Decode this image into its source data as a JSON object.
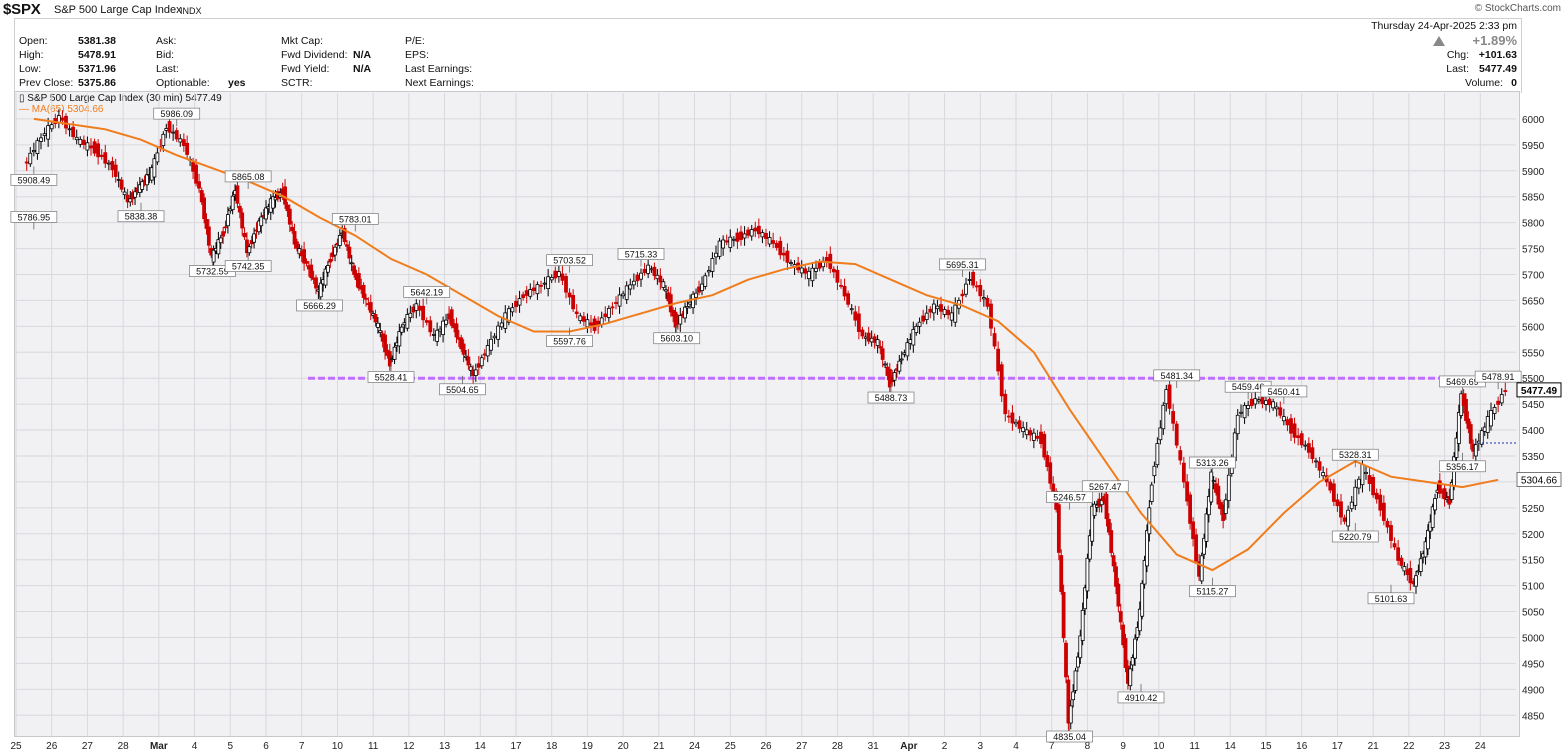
{
  "header": {
    "symbol": "$SPX",
    "name": "S&P 500 Large Cap Index",
    "exchange": "INDX",
    "logo": "© StockCharts.com"
  },
  "quote": {
    "open_label": "Open:",
    "open": "5381.38",
    "high_label": "High:",
    "high": "5478.91",
    "low_label": "Low:",
    "low": "5371.96",
    "prev_close_label": "Prev Close:",
    "prev_close": "5375.86",
    "ask_label": "Ask:",
    "bid_label": "Bid:",
    "last_label2": "Last:",
    "optionable_label": "Optionable:",
    "optionable": "yes",
    "mkt_cap_label": "Mkt Cap:",
    "fwd_div_label": "Fwd Dividend:",
    "fwd_div": "N/A",
    "fwd_yield_label": "Fwd Yield:",
    "fwd_yield": "N/A",
    "sctr_label": "SCTR:",
    "pe_label": "P/E:",
    "eps_label": "EPS:",
    "last_earn_label": "Last Earnings:",
    "next_earn_label": "Next Earnings:",
    "datetime": "Thursday  24-Apr-2025  2:33 pm",
    "change_pct": "+1.89%",
    "chg_label": "Chg:",
    "chg": "+101.63",
    "last_label": "Last:",
    "last": "5477.49",
    "volume_label": "Volume:",
    "volume": "0"
  },
  "legend": {
    "price": "S&P 500 Large Cap Index (30 min) 5477.49",
    "ma": "MA(65) 5304.66"
  },
  "colors": {
    "up": "#000000",
    "down": "#cc0000",
    "ma": "#f07c1c",
    "support": "#c070ff",
    "grid": "#d8d8dd"
  },
  "chart_data": {
    "type": "candlestick",
    "interval": "30 min",
    "ylim": [
      4810,
      6050
    ],
    "y_ticks": [
      4850,
      4900,
      4950,
      5000,
      5050,
      5100,
      5150,
      5200,
      5250,
      5300,
      5350,
      5400,
      5450,
      5500,
      5550,
      5600,
      5650,
      5700,
      5750,
      5800,
      5850,
      5900,
      5950,
      6000
    ],
    "x_labels": [
      "25",
      "26",
      "27",
      "28",
      "Mar",
      "4",
      "5",
      "6",
      "7",
      "10",
      "11",
      "12",
      "13",
      "14",
      "17",
      "18",
      "19",
      "20",
      "21",
      "24",
      "25",
      "26",
      "27",
      "28",
      "31",
      "Apr",
      "2",
      "3",
      "4",
      "7",
      "8",
      "9",
      "10",
      "11",
      "14",
      "15",
      "16",
      "17",
      "21",
      "22",
      "23",
      "24"
    ],
    "price_path": [
      [
        "25",
        5908
      ],
      [
        "25",
        5965
      ],
      [
        "26",
        6005
      ],
      [
        "26",
        5960
      ],
      [
        "27",
        5940
      ],
      [
        "27",
        5905
      ],
      [
        "28",
        5840
      ],
      [
        "28",
        5870
      ],
      [
        "28",
        5900
      ],
      [
        "Mar",
        5986
      ],
      [
        "Mar",
        5950
      ],
      [
        "4",
        5865
      ],
      [
        "4",
        5733
      ],
      [
        "4",
        5780
      ],
      [
        "5",
        5865
      ],
      [
        "5",
        5742
      ],
      [
        "5",
        5800
      ],
      [
        "6",
        5840
      ],
      [
        "6",
        5860
      ],
      [
        "6",
        5760
      ],
      [
        "7",
        5720
      ],
      [
        "7",
        5666
      ],
      [
        "7",
        5730
      ],
      [
        "10",
        5783
      ],
      [
        "10",
        5700
      ],
      [
        "10",
        5650
      ],
      [
        "11",
        5600
      ],
      [
        "11",
        5528
      ],
      [
        "11",
        5600
      ],
      [
        "12",
        5642
      ],
      [
        "12",
        5580
      ],
      [
        "13",
        5620
      ],
      [
        "13",
        5560
      ],
      [
        "13",
        5505
      ],
      [
        "14",
        5560
      ],
      [
        "14",
        5620
      ],
      [
        "17",
        5660
      ],
      [
        "17",
        5680
      ],
      [
        "18",
        5704
      ],
      [
        "18",
        5620
      ],
      [
        "19",
        5598
      ],
      [
        "19",
        5640
      ],
      [
        "20",
        5680
      ],
      [
        "20",
        5715
      ],
      [
        "21",
        5680
      ],
      [
        "21",
        5603
      ],
      [
        "21",
        5640
      ],
      [
        "24",
        5680
      ],
      [
        "24",
        5760
      ],
      [
        "25",
        5770
      ],
      [
        "25",
        5787
      ],
      [
        "26",
        5760
      ],
      [
        "26",
        5720
      ],
      [
        "27",
        5700
      ],
      [
        "27",
        5730
      ],
      [
        "28",
        5660
      ],
      [
        "28",
        5580
      ],
      [
        "31",
        5570
      ],
      [
        "31",
        5489
      ],
      [
        "31",
        5540
      ],
      [
        "Apr",
        5600
      ],
      [
        "Apr",
        5640
      ],
      [
        "2",
        5620
      ],
      [
        "2",
        5695
      ],
      [
        "3",
        5640
      ],
      [
        "3",
        5430
      ],
      [
        "4",
        5400
      ],
      [
        "4",
        5380
      ],
      [
        "7",
        5250
      ],
      [
        "7",
        4835
      ],
      [
        "7",
        5000
      ],
      [
        "8",
        5247
      ],
      [
        "8",
        5267
      ],
      [
        "8",
        5100
      ],
      [
        "9",
        4910
      ],
      [
        "9",
        5050
      ],
      [
        "9",
        5300
      ],
      [
        "10",
        5481
      ],
      [
        "10",
        5300
      ],
      [
        "11",
        5115
      ],
      [
        "11",
        5313
      ],
      [
        "11",
        5230
      ],
      [
        "14",
        5430
      ],
      [
        "14",
        5459
      ],
      [
        "15",
        5450
      ],
      [
        "15",
        5400
      ],
      [
        "16",
        5360
      ],
      [
        "16",
        5300
      ],
      [
        "17",
        5221
      ],
      [
        "17",
        5328
      ],
      [
        "21",
        5250
      ],
      [
        "21",
        5150
      ],
      [
        "22",
        5102
      ],
      [
        "22",
        5180
      ],
      [
        "22",
        5290
      ],
      [
        "23",
        5260
      ],
      [
        "23",
        5470
      ],
      [
        "23",
        5356
      ],
      [
        "24",
        5420
      ],
      [
        "24",
        5479
      ]
    ],
    "ma_path": [
      [
        "25",
        6000
      ],
      [
        "27",
        5980
      ],
      [
        "28",
        5960
      ],
      [
        "Mar",
        5930
      ],
      [
        "5",
        5880
      ],
      [
        "6",
        5850
      ],
      [
        "7",
        5810
      ],
      [
        "10",
        5775
      ],
      [
        "11",
        5730
      ],
      [
        "12",
        5700
      ],
      [
        "13",
        5660
      ],
      [
        "14",
        5620
      ],
      [
        "17",
        5590
      ],
      [
        "18",
        5590
      ],
      [
        "19",
        5605
      ],
      [
        "20",
        5625
      ],
      [
        "21",
        5645
      ],
      [
        "24",
        5660
      ],
      [
        "25",
        5690
      ],
      [
        "26",
        5710
      ],
      [
        "27",
        5725
      ],
      [
        "28",
        5720
      ],
      [
        "31",
        5690
      ],
      [
        "Apr",
        5660
      ],
      [
        "2",
        5640
      ],
      [
        "3",
        5610
      ],
      [
        "4",
        5550
      ],
      [
        "7",
        5440
      ],
      [
        "8",
        5340
      ],
      [
        "9",
        5240
      ],
      [
        "10",
        5160
      ],
      [
        "11",
        5130
      ],
      [
        "14",
        5170
      ],
      [
        "15",
        5240
      ],
      [
        "16",
        5300
      ],
      [
        "17",
        5340
      ],
      [
        "21",
        5310
      ],
      [
        "22",
        5300
      ],
      [
        "23",
        5290
      ],
      [
        "24",
        5304
      ]
    ],
    "annotations": [
      {
        "x": "25",
        "y": 5908.49,
        "label": "5908.49",
        "pos": "below"
      },
      {
        "x": "Mar",
        "y": 5986.09,
        "label": "5986.09",
        "pos": "above"
      },
      {
        "x": "28",
        "y": 5838.38,
        "label": "5838.38",
        "pos": "below"
      },
      {
        "x": "5",
        "y": 5865.08,
        "label": "5865.08",
        "pos": "above"
      },
      {
        "x": "4",
        "y": 5732.59,
        "label": "5732.59",
        "pos": "below"
      },
      {
        "x": "5",
        "y": 5742.35,
        "label": "5742.35",
        "pos": "below"
      },
      {
        "x": "10",
        "y": 5783.01,
        "label": "5783.01",
        "pos": "above"
      },
      {
        "x": "7",
        "y": 5666.29,
        "label": "5666.29",
        "pos": "below"
      },
      {
        "x": "12",
        "y": 5642.19,
        "label": "5642.19",
        "pos": "above"
      },
      {
        "x": "11",
        "y": 5528.41,
        "label": "5528.41",
        "pos": "below"
      },
      {
        "x": "13",
        "y": 5504.65,
        "label": "5504.65",
        "pos": "below"
      },
      {
        "x": "18",
        "y": 5703.52,
        "label": "5703.52",
        "pos": "above"
      },
      {
        "x": "20",
        "y": 5715.33,
        "label": "5715.33",
        "pos": "above"
      },
      {
        "x": "18",
        "y": 5597.76,
        "label": "5597.76",
        "pos": "below"
      },
      {
        "x": "21",
        "y": 5603.1,
        "label": "5603.10",
        "pos": "below"
      },
      {
        "x": "25",
        "y": 5786.95,
        "label": "5786.95",
        "pos": "above",
        "second": true
      },
      {
        "x": "2",
        "y": 5695.31,
        "label": "5695.31",
        "pos": "above"
      },
      {
        "x": "31",
        "y": 5488.73,
        "label": "5488.73",
        "pos": "below"
      },
      {
        "x": "7",
        "y": 5246.57,
        "label": "5246.57",
        "pos": "above",
        "after_apr": true
      },
      {
        "x": "8",
        "y": 5267.47,
        "label": "5267.47",
        "pos": "above"
      },
      {
        "x": "7",
        "y": 4835.04,
        "label": "4835.04",
        "pos": "below",
        "after_apr": true
      },
      {
        "x": "9",
        "y": 4910.42,
        "label": "4910.42",
        "pos": "below"
      },
      {
        "x": "10",
        "y": 5481.34,
        "label": "5481.34",
        "pos": "above",
        "after_apr": true
      },
      {
        "x": "11",
        "y": 5313.26,
        "label": "5313.26",
        "pos": "above",
        "after_apr": true
      },
      {
        "x": "11",
        "y": 5115.27,
        "label": "5115.27",
        "pos": "below",
        "after_apr": true
      },
      {
        "x": "14",
        "y": 5459.46,
        "label": "5459.46",
        "pos": "above",
        "after_apr": true
      },
      {
        "x": "15",
        "y": 5450.41,
        "label": "5450.41",
        "pos": "above",
        "after_apr": true
      },
      {
        "x": "17",
        "y": 5328.31,
        "label": "5328.31",
        "pos": "above",
        "after_apr": true
      },
      {
        "x": "17",
        "y": 5220.79,
        "label": "5220.79",
        "pos": "below",
        "after_apr": true
      },
      {
        "x": "21",
        "y": 5101.63,
        "label": "5101.63",
        "pos": "below",
        "after_apr": true
      },
      {
        "x": "23",
        "y": 5469.69,
        "label": "5469.69",
        "pos": "above",
        "after_apr": true
      },
      {
        "x": "23",
        "y": 5356.17,
        "label": "5356.17",
        "pos": "below",
        "after_apr": true
      },
      {
        "x": "24",
        "y": 5478.91,
        "label": "5478.91",
        "pos": "above",
        "after_apr": true
      }
    ],
    "support_level": 5500,
    "last_price": "5477.49",
    "ma_value": "5304.66",
    "grid": true
  }
}
